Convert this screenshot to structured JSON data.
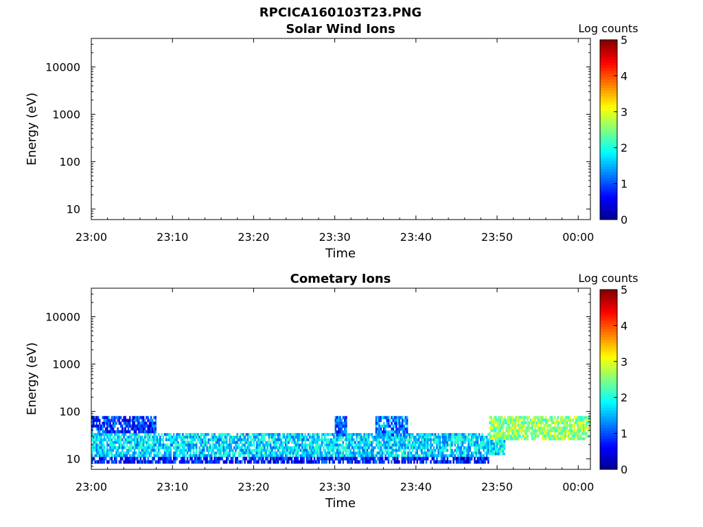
{
  "figure_title": "RPCICA160103T23.PNG",
  "colorbar_label": "Log counts",
  "colormap": [
    "#00008f",
    "#0000ff",
    "#0080ff",
    "#00ffff",
    "#80ff80",
    "#ffff00",
    "#ff8000",
    "#ff0000",
    "#800000"
  ],
  "chart_data": [
    {
      "type": "heatmap",
      "title": "Solar Wind Ions",
      "xlabel": "Time",
      "ylabel": "Energy (eV)",
      "x_ticks": [
        "23:00",
        "23:10",
        "23:20",
        "23:30",
        "23:40",
        "23:50",
        "00:00"
      ],
      "x_range_minutes": [
        0,
        61.5
      ],
      "y_scale": "log",
      "y_ticks": [
        "10",
        "100",
        "1000",
        "10000"
      ],
      "y_range": [
        6,
        40000
      ],
      "colorbar": {
        "label": "Log counts",
        "range": [
          0,
          5
        ],
        "ticks": [
          "0",
          "1",
          "2",
          "3",
          "4",
          "5"
        ]
      },
      "cells": []
    },
    {
      "type": "heatmap",
      "title": "Cometary Ions",
      "xlabel": "Time",
      "ylabel": "Energy (eV)",
      "x_ticks": [
        "23:00",
        "23:10",
        "23:20",
        "23:30",
        "23:40",
        "23:50",
        "00:00"
      ],
      "x_range_minutes": [
        0,
        61.5
      ],
      "y_scale": "log",
      "y_ticks": [
        "10",
        "100",
        "1000",
        "10000"
      ],
      "y_range": [
        6,
        40000
      ],
      "colorbar": {
        "label": "Log counts",
        "range": [
          0,
          5
        ],
        "ticks": [
          "0",
          "1",
          "2",
          "3",
          "4",
          "5"
        ]
      },
      "description_of_signal": "Dense band 10-40 eV throughout, enhanced 25-80 eV after 23:49",
      "regions": [
        {
          "t_start": 0,
          "t_end": 49,
          "e_low": 11,
          "e_high": 35,
          "level": 1.7
        },
        {
          "t_start": 0,
          "t_end": 49,
          "e_low": 8,
          "e_high": 11,
          "level": 0.7
        },
        {
          "t_start": 0,
          "t_end": 8,
          "e_low": 35,
          "e_high": 80,
          "level": 0.9
        },
        {
          "t_start": 30,
          "t_end": 31.5,
          "e_low": 30,
          "e_high": 80,
          "level": 1.0
        },
        {
          "t_start": 35,
          "t_end": 39,
          "e_low": 30,
          "e_high": 80,
          "level": 1.3
        },
        {
          "t_start": 49,
          "t_end": 61.5,
          "e_low": 25,
          "e_high": 80,
          "level": 2.6
        },
        {
          "t_start": 49,
          "t_end": 51,
          "e_low": 12,
          "e_high": 25,
          "level": 1.8
        }
      ]
    }
  ]
}
